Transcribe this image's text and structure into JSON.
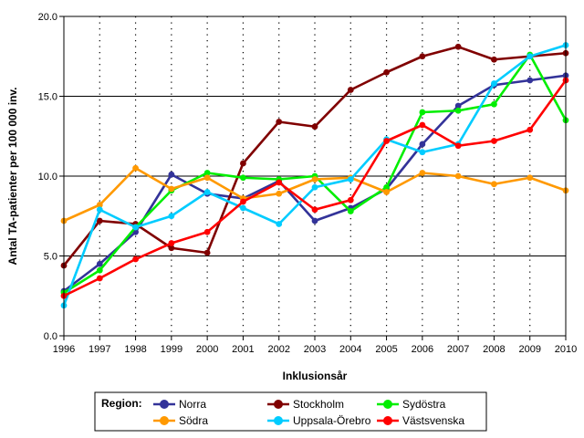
{
  "chart_data": {
    "type": "line",
    "xlabel": "Inklusionsår",
    "ylabel": "Antal TA-patienter per 100 000 inv.",
    "x": [
      "1996",
      "1997",
      "1998",
      "1999",
      "2000",
      "2001",
      "2002",
      "2003",
      "2004",
      "2005",
      "2006",
      "2007",
      "2008",
      "2009",
      "2010"
    ],
    "ylim": [
      0,
      20
    ],
    "yticks": [
      "0.0",
      "5.0",
      "10.0",
      "15.0",
      "20.0"
    ],
    "grid": true,
    "legend": {
      "title": "Region:",
      "placement": "bottom"
    },
    "series": [
      {
        "name": "Norra",
        "color": "#333399",
        "values": [
          2.8,
          4.5,
          6.5,
          10.1,
          8.9,
          8.6,
          9.7,
          7.2,
          8.0,
          9.2,
          12.0,
          14.4,
          15.7,
          16.0,
          16.3
        ]
      },
      {
        "name": "Stockholm",
        "color": "#800000",
        "values": [
          4.4,
          7.2,
          7.0,
          5.5,
          5.2,
          10.8,
          13.4,
          13.1,
          15.4,
          16.5,
          17.5,
          18.1,
          17.3,
          17.5,
          17.7
        ]
      },
      {
        "name": "Sydöstra",
        "color": "#00ee00",
        "values": [
          2.7,
          4.1,
          6.8,
          9.1,
          10.2,
          9.9,
          9.8,
          10.0,
          7.8,
          9.3,
          14.0,
          14.1,
          14.5,
          17.6,
          13.5
        ]
      },
      {
        "name": "Södra",
        "color": "#ff9900",
        "values": [
          7.2,
          8.2,
          10.5,
          9.2,
          9.9,
          8.6,
          8.9,
          9.8,
          9.9,
          9.0,
          10.2,
          10.0,
          9.5,
          9.9,
          9.1
        ]
      },
      {
        "name": "Uppsala-Örebro",
        "color": "#00ccff",
        "values": [
          1.9,
          7.9,
          6.8,
          7.5,
          9.0,
          8.0,
          7.0,
          9.3,
          9.8,
          12.3,
          11.5,
          12.0,
          15.8,
          17.5,
          18.2
        ]
      },
      {
        "name": "Västsvenska",
        "color": "#ff0000",
        "values": [
          2.5,
          3.6,
          4.8,
          5.8,
          6.5,
          8.4,
          9.6,
          7.9,
          8.5,
          12.2,
          13.2,
          11.9,
          12.2,
          12.9,
          16.0
        ]
      }
    ]
  }
}
